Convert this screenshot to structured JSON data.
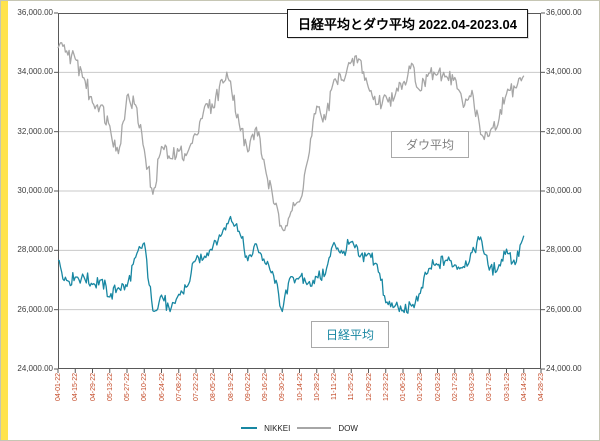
{
  "title": "日経平均とダウ平均 2022.04-2023.04",
  "annotations": {
    "dow": "ダウ平均",
    "nikkei": "日経平均"
  },
  "legend": {
    "nikkei": "NIKKEI",
    "dow": "DOW"
  },
  "colors": {
    "nikkei": "#1887a2",
    "dow": "#a6a6a6",
    "x_label": "#c44c2a",
    "grid": "#c9c9c9",
    "plot_border": "#595959",
    "left_strip": "#ffe34d",
    "chart_background": "#ffffff",
    "page_background": "#fdfdf3"
  },
  "chart_data": {
    "type": "line",
    "title": "日経平均とダウ平均 2022.04-2023.04",
    "ylim": [
      24000,
      36000
    ],
    "y_step": 2000,
    "grid": "horizontal",
    "legend_position": "bottom",
    "sampling": "weekly closes (values read from chart)",
    "y_tick_labels": [
      "36,000.00",
      "34,000.00",
      "32,000.00",
      "30,000.00",
      "28,000.00",
      "26,000.00",
      "24,000.00"
    ],
    "x_tick_labels": [
      "04-01-22",
      "04-15-22",
      "04-29-22",
      "05-13-22",
      "05-27-22",
      "06-10-22",
      "06-24-22",
      "07-08-22",
      "07-22-22",
      "08-05-22",
      "08-19-22",
      "09-02-22",
      "09-16-22",
      "09-30-22",
      "10-14-22",
      "10-28-22",
      "11-11-22",
      "11-25-22",
      "12-09-22",
      "12-23-22",
      "01-06-23",
      "01-20-23",
      "02-03-23",
      "02-17-23",
      "03-03-23",
      "03-17-23",
      "03-31-23",
      "04-14-23",
      "04-28-23"
    ],
    "x": [
      "04-01-22",
      "04-08-22",
      "04-15-22",
      "04-22-22",
      "04-29-22",
      "05-06-22",
      "05-13-22",
      "05-20-22",
      "05-27-22",
      "06-03-22",
      "06-10-22",
      "06-17-22",
      "06-24-22",
      "07-01-22",
      "07-08-22",
      "07-15-22",
      "07-22-22",
      "07-29-22",
      "08-05-22",
      "08-12-22",
      "08-19-22",
      "08-26-22",
      "09-02-22",
      "09-09-22",
      "09-16-22",
      "09-23-22",
      "09-30-22",
      "10-07-22",
      "10-14-22",
      "10-21-22",
      "10-28-22",
      "11-04-22",
      "11-11-22",
      "11-18-22",
      "11-25-22",
      "12-02-22",
      "12-09-22",
      "12-16-22",
      "12-23-22",
      "12-30-22",
      "01-06-23",
      "01-13-23",
      "01-20-23",
      "01-27-23",
      "02-03-23",
      "02-10-23",
      "02-17-23",
      "02-24-23",
      "03-03-23",
      "03-10-23",
      "03-17-23",
      "03-24-23",
      "03-31-23",
      "04-07-23",
      "04-14-23"
    ],
    "series": [
      {
        "name": "NIKKEI",
        "color": "#1887a2",
        "values": [
          27665,
          26986,
          27093,
          27105,
          26848,
          27004,
          26428,
          26739,
          26782,
          27762,
          28250,
          25963,
          26492,
          25936,
          26517,
          26788,
          27699,
          27802,
          28175,
          28547,
          29140,
          28641,
          27651,
          28215,
          27568,
          27154,
          25937,
          27116,
          27091,
          26890,
          27105,
          27200,
          28264,
          27900,
          28283,
          27778,
          27901,
          27527,
          26235,
          26095,
          25974,
          26120,
          26553,
          27383,
          27510,
          27671,
          27513,
          27453,
          27927,
          28450,
          27334,
          27385,
          28041,
          27518,
          28493
        ]
      },
      {
        "name": "DOW",
        "color": "#a6a6a6",
        "values": [
          34818,
          34721,
          34451,
          33811,
          32977,
          32899,
          32196,
          31261,
          33213,
          32900,
          31393,
          29889,
          31500,
          31097,
          31338,
          31288,
          31899,
          32845,
          32803,
          33761,
          33707,
          32283,
          31318,
          32152,
          30822,
          29590,
          28726,
          29297,
          29635,
          31083,
          32862,
          32403,
          33748,
          33746,
          34347,
          34430,
          33476,
          32920,
          33204,
          33147,
          33631,
          34303,
          33375,
          33978,
          33926,
          33869,
          33827,
          32817,
          33391,
          31910,
          31862,
          32238,
          33274,
          33485,
          33886
        ]
      }
    ]
  }
}
